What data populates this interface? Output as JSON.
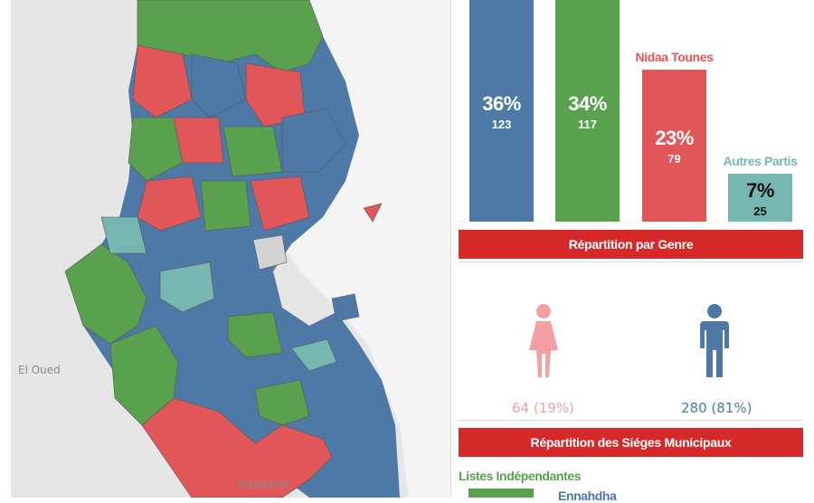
{
  "map": {
    "labels": [
      "El Oued",
      "Tataouine"
    ],
    "colors": {
      "blue": "#4e79a7",
      "green": "#59a14f",
      "red": "#e15759",
      "teal": "#76b7b2",
      "grey": "#d3d3d3",
      "background": "#e8e8e8"
    }
  },
  "chart_data": {
    "type": "bar",
    "title": "",
    "categories": [
      "",
      "",
      "Nidaa Tounes",
      "Autres Partis"
    ],
    "series": [
      {
        "values": [
          123,
          117,
          79,
          25
        ]
      }
    ],
    "percentages": [
      "36%",
      "34%",
      "23%",
      "7%"
    ],
    "counts": [
      "123",
      "117",
      "79",
      "25"
    ],
    "colors": [
      "#4e79a7",
      "#59a14f",
      "#e15759",
      "#76b7b2"
    ],
    "ylim": [
      0,
      123
    ]
  },
  "gender": {
    "title": "Répartition par Genre",
    "female_value": "64 (19%)",
    "male_value": "280 (81%)",
    "female_color": "#f3a0a4",
    "male_color": "#4e79a7"
  },
  "seats": {
    "title": "Répartition des Siéges Municipaux",
    "items": [
      "Listes Indépendantes",
      "Ennahdha"
    ]
  }
}
